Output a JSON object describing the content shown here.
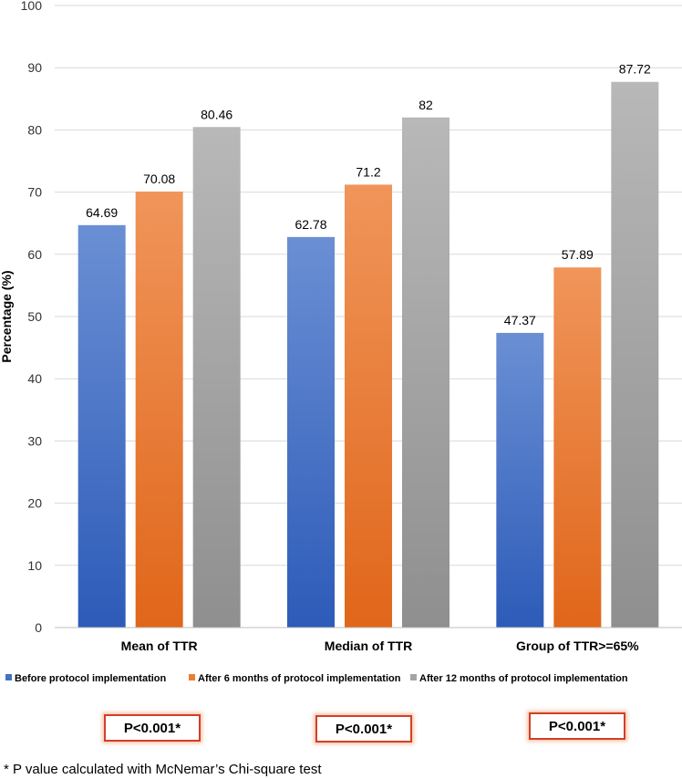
{
  "chart_data": {
    "type": "bar",
    "title": "",
    "xlabel": "",
    "ylabel": "Percentage (%)",
    "ylim": [
      0,
      100
    ],
    "yticks": [
      0,
      10,
      20,
      30,
      40,
      50,
      60,
      70,
      80,
      90,
      100
    ],
    "grid": true,
    "legend_position": "bottom",
    "categories": [
      "Mean of TTR",
      "Median of TTR",
      "Group of TTR>=65%"
    ],
    "series": [
      {
        "name": "Before protocol implementation",
        "color": "#4472c4",
        "values": [
          64.69,
          62.78,
          47.37
        ]
      },
      {
        "name": "After 6 months of protocol implementation",
        "color": "#ed7d31",
        "values": [
          70.08,
          71.2,
          57.89
        ]
      },
      {
        "name": "After 12 months of protocol implementation",
        "color": "#a5a5a5",
        "values": [
          80.46,
          82,
          87.72
        ]
      }
    ]
  },
  "annotations": {
    "p_values": [
      "P<0.001*",
      "P<0.001*",
      "P<0.001*"
    ],
    "footnote": "* P value calculated with McNemar’s Chi-square test"
  }
}
